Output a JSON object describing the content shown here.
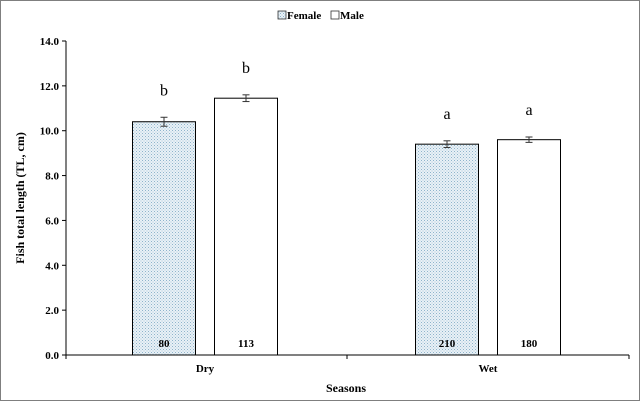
{
  "chart_data": {
    "type": "bar",
    "title": "",
    "xlabel": "Seasons",
    "ylabel": "Fish total length (TL, cm)",
    "ylim": [
      0,
      14
    ],
    "yticks": [
      "0.0",
      "2.0",
      "4.0",
      "6.0",
      "8.0",
      "10.0",
      "12.0",
      "14.0"
    ],
    "categories": [
      "Dry",
      "Wet"
    ],
    "grid": false,
    "legend_position": "top-center",
    "series": [
      {
        "name": "Female",
        "values": [
          10.4,
          9.4
        ],
        "errors": [
          0.2,
          0.15
        ],
        "sample_sizes": [
          "80",
          "210"
        ],
        "letters": [
          "b",
          "a"
        ],
        "fill": "pattern-dotted",
        "color": "#dbe8f0"
      },
      {
        "name": "Male",
        "values": [
          11.45,
          9.6
        ],
        "errors": [
          0.15,
          0.12
        ],
        "sample_sizes": [
          "113",
          "180"
        ],
        "letters": [
          "b",
          "a"
        ],
        "fill": "solid",
        "color": "#ffffff"
      }
    ]
  }
}
